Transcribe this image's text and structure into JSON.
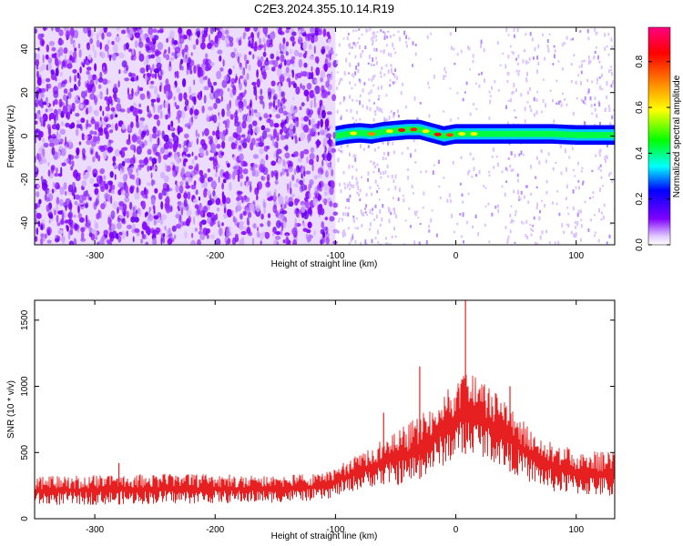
{
  "chart_data": [
    {
      "type": "heatmap",
      "title": "C2E3.2024.355.10.14.R19",
      "xlabel": "Height of straight line (km)",
      "ylabel": "Frequency (Hz)",
      "xlim": [
        -350,
        132
      ],
      "ylim": [
        -50,
        50
      ],
      "xticks": [
        -300,
        -200,
        -100,
        0,
        100
      ],
      "yticks": [
        -40,
        -20,
        0,
        20,
        40
      ],
      "colorbar": {
        "label": "Normalized spectral amplitude",
        "range": [
          0,
          0.95
        ],
        "ticks": [
          "0.0",
          "0.2",
          "0.4",
          "0.6",
          "0.8"
        ]
      },
      "noise_region": {
        "x_from": -350,
        "x_to": -100,
        "color": "#7f00ff"
      },
      "signal_trace": [
        {
          "x": -100,
          "y": 0
        },
        {
          "x": -90,
          "y": 1
        },
        {
          "x": -80,
          "y": 1.5
        },
        {
          "x": -70,
          "y": 1
        },
        {
          "x": -60,
          "y": 2
        },
        {
          "x": -50,
          "y": 2.5
        },
        {
          "x": -40,
          "y": 3
        },
        {
          "x": -30,
          "y": 3
        },
        {
          "x": -20,
          "y": 1.5
        },
        {
          "x": -10,
          "y": 0
        },
        {
          "x": 0,
          "y": 1
        },
        {
          "x": 20,
          "y": 1
        },
        {
          "x": 40,
          "y": 1
        },
        {
          "x": 60,
          "y": 1
        },
        {
          "x": 80,
          "y": 1
        },
        {
          "x": 100,
          "y": 0.5
        },
        {
          "x": 132,
          "y": 0.5
        }
      ]
    },
    {
      "type": "line",
      "xlabel": "Height of straight line (km)",
      "ylabel": "SNR (10 * v/v)",
      "xlim": [
        -350,
        132
      ],
      "ylim": [
        0,
        1650
      ],
      "xticks": [
        -300,
        -200,
        -100,
        0,
        100
      ],
      "yticks": [
        0,
        500,
        1000,
        1500
      ],
      "color": "#e62020",
      "envelope": [
        {
          "x": -350,
          "low": 100,
          "high": 320
        },
        {
          "x": -250,
          "low": 110,
          "high": 340
        },
        {
          "x": -150,
          "low": 120,
          "high": 330
        },
        {
          "x": -110,
          "low": 140,
          "high": 340
        },
        {
          "x": -80,
          "low": 220,
          "high": 500
        },
        {
          "x": -60,
          "low": 260,
          "high": 600
        },
        {
          "x": -40,
          "low": 250,
          "high": 720
        },
        {
          "x": -20,
          "low": 350,
          "high": 850
        },
        {
          "x": 0,
          "low": 450,
          "high": 1050
        },
        {
          "x": 10,
          "low": 500,
          "high": 1100
        },
        {
          "x": 20,
          "low": 480,
          "high": 1050
        },
        {
          "x": 40,
          "low": 380,
          "high": 900
        },
        {
          "x": 60,
          "low": 280,
          "high": 700
        },
        {
          "x": 80,
          "low": 200,
          "high": 580
        },
        {
          "x": 100,
          "low": 180,
          "high": 520
        },
        {
          "x": 132,
          "low": 160,
          "high": 500
        }
      ],
      "spikes": [
        {
          "x": 8,
          "y": 1650
        },
        {
          "x": -30,
          "y": 1150
        },
        {
          "x": -60,
          "y": 800
        },
        {
          "x": 45,
          "y": 1000
        },
        {
          "x": -280,
          "y": 420
        }
      ]
    }
  ]
}
